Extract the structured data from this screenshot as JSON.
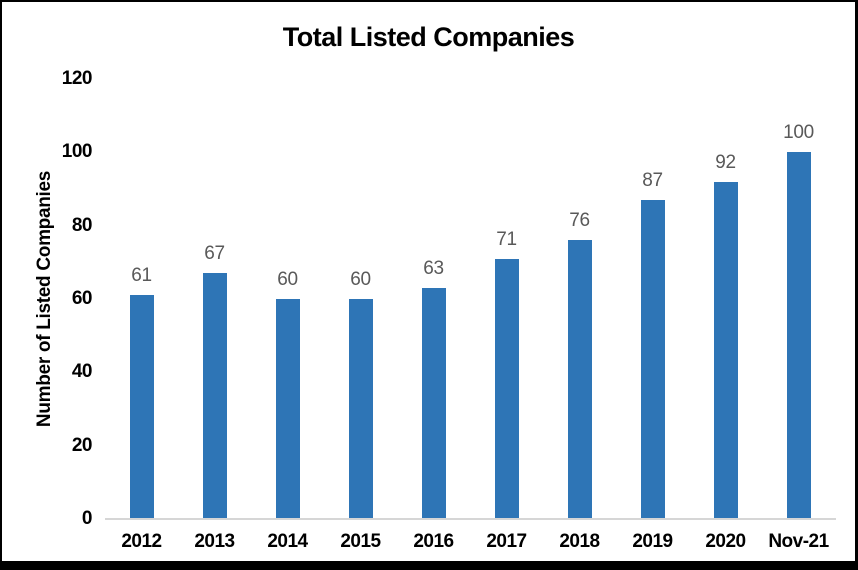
{
  "frame": {
    "background": "#FFFFFF",
    "border_color": "#000000"
  },
  "chart_data": {
    "type": "bar",
    "title": "Total Listed Companies",
    "xlabel": "",
    "ylabel": "Number of Listed Companies",
    "categories": [
      "2012",
      "2013",
      "2014",
      "2015",
      "2016",
      "2017",
      "2018",
      "2019",
      "2020",
      "Nov-21"
    ],
    "values": [
      61,
      67,
      60,
      60,
      63,
      71,
      76,
      87,
      92,
      100
    ],
    "data_labels": [
      "61",
      "67",
      "60",
      "60",
      "63",
      "71",
      "76",
      "87",
      "92",
      "100"
    ],
    "ylim": [
      0,
      120
    ],
    "yticks": [
      0,
      20,
      40,
      60,
      80,
      100,
      120
    ],
    "grid": false,
    "legend": "none",
    "bar_color": "#2E75B6",
    "data_label_color": "#595959",
    "axis_line_color": "#D6D6D6",
    "text_color": "#000000"
  }
}
